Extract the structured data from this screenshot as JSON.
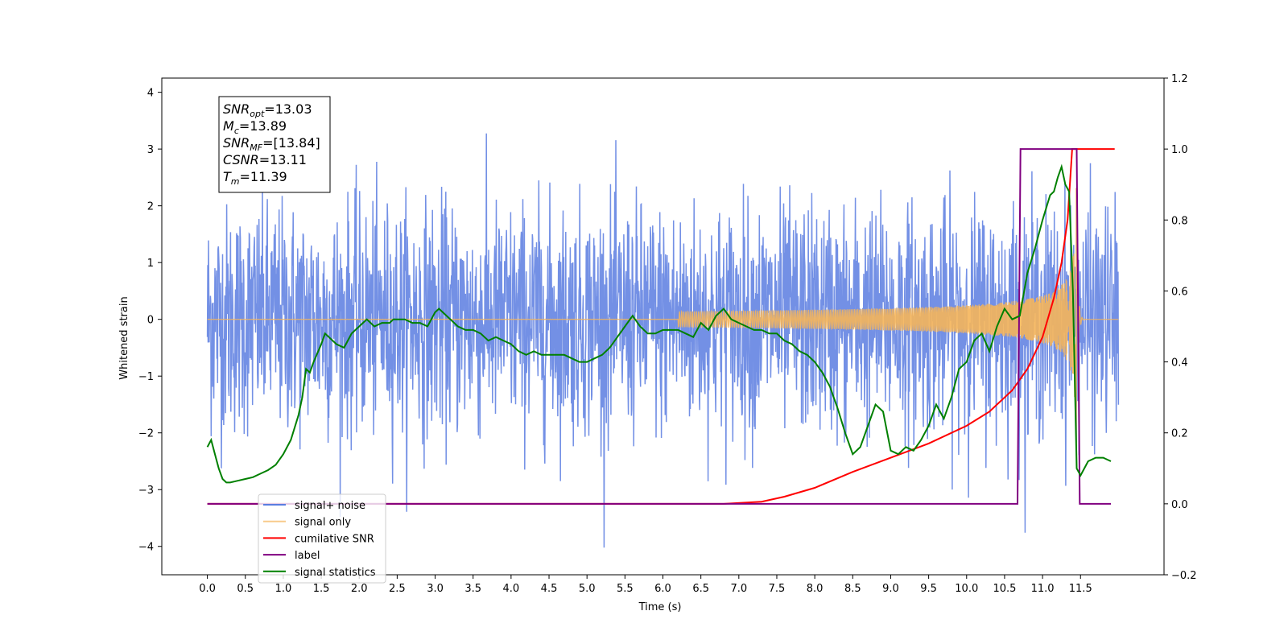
{
  "chart_data": {
    "type": "line",
    "xlabel": "Time (s)",
    "ylabel": "Whitened strain",
    "xlim": [
      -0.6,
      12.6
    ],
    "ylim": [
      -4.5,
      4.25
    ],
    "ylim_right": [
      -0.2,
      1.2
    ],
    "x_ticks": [
      "0.0",
      "0.5",
      "1.0",
      "1.5",
      "2.0",
      "2.5",
      "3.0",
      "3.5",
      "4.0",
      "4.5",
      "5.0",
      "5.5",
      "6.0",
      "6.5",
      "7.0",
      "7.5",
      "8.0",
      "8.5",
      "9.0",
      "9.5",
      "10.0",
      "10.5",
      "11.0",
      "11.5"
    ],
    "y_ticks": [
      "4",
      "3",
      "2",
      "1",
      "0",
      "−1",
      "−2",
      "−3",
      "−4"
    ],
    "y_ticks_right": [
      "1.2",
      "1.0",
      "0.8",
      "0.6",
      "0.4",
      "0.2",
      "0.0",
      "−0.2"
    ],
    "grid": false,
    "legend_placement": "lower-left",
    "info_box": {
      "lines": [
        {
          "sym": "SNR",
          "sub": "opt",
          "value": "=13.03"
        },
        {
          "sym": "M",
          "sub": "c",
          "value": "=13.89"
        },
        {
          "sym": "SNR",
          "sub": "MF",
          "value": "=[13.84]"
        },
        {
          "sym": "CSNR",
          "sub": "",
          "value": "=13.11"
        },
        {
          "sym": "T",
          "sub": "m",
          "value": "=11.39"
        }
      ]
    },
    "series": [
      {
        "name": "signal+ noise",
        "color": "#5a7de0",
        "axis": "left",
        "kind": "noise",
        "x_range": [
          0.0,
          12.0
        ],
        "spread": 1.0
      },
      {
        "name": "signal only",
        "color": "#f5b55a",
        "axis": "left",
        "kind": "chirp",
        "x_range": [
          0.0,
          12.0
        ],
        "merger": 11.39
      },
      {
        "name": "cumilative SNR",
        "color": "#ff0000",
        "axis": "right",
        "x": [
          0.0,
          6.8,
          7.3,
          7.6,
          8.0,
          8.5,
          9.0,
          9.5,
          10.0,
          10.3,
          10.6,
          10.8,
          11.0,
          11.15,
          11.25,
          11.33,
          11.39,
          11.95
        ],
        "y": [
          0.0,
          0.0,
          0.006,
          0.02,
          0.045,
          0.09,
          0.13,
          0.17,
          0.22,
          0.26,
          0.32,
          0.38,
          0.47,
          0.58,
          0.68,
          0.8,
          1.0,
          1.0
        ]
      },
      {
        "name": "label",
        "color": "#800080",
        "axis": "right",
        "x": [
          0.0,
          10.67,
          10.71,
          11.45,
          11.49,
          11.9
        ],
        "y": [
          0.0,
          0.0,
          1.0,
          1.0,
          0.0,
          0.0
        ]
      },
      {
        "name": "signal statistics",
        "color": "#008000",
        "axis": "right",
        "x": [
          0.0,
          0.05,
          0.1,
          0.15,
          0.2,
          0.25,
          0.3,
          0.4,
          0.5,
          0.6,
          0.7,
          0.8,
          0.9,
          1.0,
          1.1,
          1.2,
          1.25,
          1.3,
          1.35,
          1.4,
          1.5,
          1.55,
          1.6,
          1.7,
          1.8,
          1.9,
          2.0,
          2.05,
          2.1,
          2.15,
          2.2,
          2.3,
          2.4,
          2.45,
          2.5,
          2.6,
          2.7,
          2.8,
          2.9,
          3.0,
          3.05,
          3.1,
          3.2,
          3.3,
          3.4,
          3.5,
          3.6,
          3.7,
          3.8,
          3.9,
          4.0,
          4.1,
          4.2,
          4.3,
          4.4,
          4.5,
          4.6,
          4.7,
          4.8,
          4.9,
          5.0,
          5.1,
          5.2,
          5.3,
          5.4,
          5.5,
          5.6,
          5.7,
          5.8,
          5.9,
          6.0,
          6.1,
          6.2,
          6.3,
          6.4,
          6.5,
          6.6,
          6.7,
          6.8,
          6.9,
          7.0,
          7.1,
          7.2,
          7.3,
          7.4,
          7.5,
          7.6,
          7.7,
          7.8,
          7.9,
          8.0,
          8.1,
          8.2,
          8.3,
          8.4,
          8.5,
          8.6,
          8.7,
          8.8,
          8.9,
          9.0,
          9.1,
          9.2,
          9.3,
          9.4,
          9.5,
          9.6,
          9.7,
          9.8,
          9.9,
          10.0,
          10.1,
          10.2,
          10.3,
          10.4,
          10.5,
          10.6,
          10.7,
          10.8,
          10.9,
          11.0,
          11.1,
          11.15,
          11.2,
          11.25,
          11.3,
          11.35,
          11.4,
          11.45,
          11.5,
          11.6,
          11.7,
          11.8,
          11.9
        ],
        "y": [
          0.16,
          0.18,
          0.14,
          0.1,
          0.07,
          0.06,
          0.06,
          0.065,
          0.07,
          0.075,
          0.085,
          0.095,
          0.11,
          0.14,
          0.18,
          0.25,
          0.3,
          0.38,
          0.37,
          0.4,
          0.45,
          0.48,
          0.47,
          0.45,
          0.44,
          0.48,
          0.5,
          0.51,
          0.52,
          0.51,
          0.5,
          0.51,
          0.51,
          0.52,
          0.52,
          0.52,
          0.51,
          0.51,
          0.5,
          0.54,
          0.55,
          0.54,
          0.52,
          0.5,
          0.49,
          0.49,
          0.48,
          0.46,
          0.47,
          0.46,
          0.45,
          0.43,
          0.42,
          0.43,
          0.42,
          0.42,
          0.42,
          0.42,
          0.41,
          0.4,
          0.4,
          0.41,
          0.42,
          0.44,
          0.47,
          0.5,
          0.53,
          0.5,
          0.48,
          0.48,
          0.49,
          0.49,
          0.49,
          0.48,
          0.47,
          0.51,
          0.49,
          0.53,
          0.55,
          0.52,
          0.51,
          0.5,
          0.49,
          0.49,
          0.48,
          0.48,
          0.46,
          0.45,
          0.43,
          0.42,
          0.4,
          0.37,
          0.33,
          0.27,
          0.2,
          0.14,
          0.16,
          0.22,
          0.28,
          0.26,
          0.15,
          0.14,
          0.16,
          0.15,
          0.18,
          0.22,
          0.28,
          0.24,
          0.3,
          0.38,
          0.4,
          0.46,
          0.48,
          0.43,
          0.5,
          0.55,
          0.52,
          0.53,
          0.65,
          0.72,
          0.8,
          0.87,
          0.88,
          0.92,
          0.95,
          0.9,
          0.88,
          0.6,
          0.1,
          0.08,
          0.12,
          0.13,
          0.13,
          0.12
        ]
      }
    ]
  }
}
